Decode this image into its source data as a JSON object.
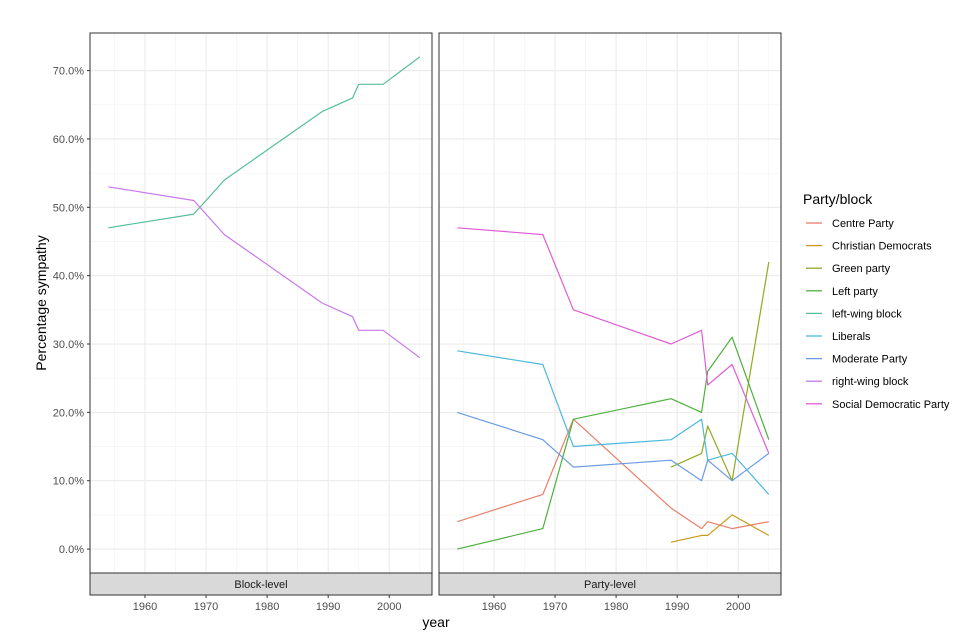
{
  "chart_data": {
    "type": "line",
    "xlabel": "year",
    "ylabel": "Percentage sympathy",
    "xlim": [
      1951,
      2007
    ],
    "ylim": [
      -3.5,
      75.5
    ],
    "x_ticks": [
      1960,
      1970,
      1980,
      1990,
      2000
    ],
    "y_ticks": [
      0,
      10,
      20,
      30,
      40,
      50,
      60,
      70
    ],
    "y_tick_labels": [
      "0.0%",
      "10.0%",
      "20.0%",
      "30.0%",
      "40.0%",
      "50.0%",
      "60.0%",
      "70.0%"
    ],
    "grid": true,
    "legend": {
      "title": "Party/block",
      "position": "right",
      "entries": [
        {
          "name": "Centre Party",
          "color": "#E8806A"
        },
        {
          "name": "Christian Democrats",
          "color": "#C99A1E"
        },
        {
          "name": "Green party",
          "color": "#8FAA21"
        },
        {
          "name": "Left party",
          "color": "#4DB03C"
        },
        {
          "name": "left-wing block",
          "color": "#55BE9A"
        },
        {
          "name": "Liberals",
          "color": "#4DB8DD"
        },
        {
          "name": "Moderate Party",
          "color": "#6C9BE3"
        },
        {
          "name": "right-wing block",
          "color": "#C777EA"
        },
        {
          "name": "Social Democratic Party",
          "color": "#E15CD4"
        }
      ]
    },
    "panels": [
      {
        "title": "Block-level",
        "series": [
          {
            "name": "left-wing block",
            "x": [
              1954,
              1968,
              1973,
              1989,
              1994,
              1995,
              1999,
              2005
            ],
            "values": [
              47,
              49,
              54,
              64,
              66,
              68,
              68,
              72
            ]
          },
          {
            "name": "right-wing block",
            "x": [
              1954,
              1968,
              1973,
              1989,
              1994,
              1995,
              1999,
              2005
            ],
            "values": [
              53,
              51,
              46,
              36,
              34,
              32,
              32,
              28
            ]
          }
        ]
      },
      {
        "title": "Party-level",
        "series": [
          {
            "name": "Centre Party",
            "x": [
              1954,
              1968,
              1973,
              1989,
              1994,
              1995,
              1999,
              2005
            ],
            "values": [
              4,
              8,
              19,
              6,
              3,
              4,
              3,
              4
            ]
          },
          {
            "name": "Christian Democrats",
            "x": [
              1989,
              1994,
              1995,
              1999,
              2005
            ],
            "values": [
              1,
              2,
              2,
              5,
              2
            ]
          },
          {
            "name": "Green party",
            "x": [
              1989,
              1994,
              1995,
              1999,
              2005
            ],
            "values": [
              12,
              14,
              18,
              10,
              42
            ]
          },
          {
            "name": "Left party",
            "x": [
              1954,
              1968,
              1973,
              1989,
              1994,
              1995,
              1999,
              2005
            ],
            "values": [
              0,
              3,
              19,
              22,
              20,
              26,
              31,
              16
            ]
          },
          {
            "name": "Liberals",
            "x": [
              1954,
              1968,
              1973,
              1989,
              1994,
              1995,
              1999,
              2005
            ],
            "values": [
              29,
              27,
              15,
              16,
              19,
              13,
              14,
              8
            ]
          },
          {
            "name": "Moderate Party",
            "x": [
              1954,
              1968,
              1973,
              1989,
              1994,
              1995,
              1999,
              2005
            ],
            "values": [
              20,
              16,
              12,
              13,
              10,
              13,
              10,
              14
            ]
          },
          {
            "name": "Social Democratic Party",
            "x": [
              1954,
              1968,
              1973,
              1989,
              1994,
              1995,
              1999,
              2005
            ],
            "values": [
              47,
              46,
              35,
              30,
              32,
              24,
              27,
              14
            ]
          }
        ]
      }
    ]
  }
}
